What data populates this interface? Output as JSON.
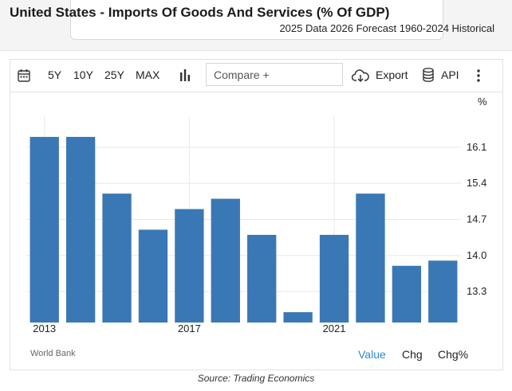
{
  "page": {
    "title": "United States - Imports Of Goods And Services (% Of GDP)",
    "subtitle": "2025 Data 2026 Forecast 1960-2024 Historical",
    "caption": "Source: Trading Economics"
  },
  "toolbar": {
    "calendar_icon": "calendar-icon",
    "ranges": [
      "5Y",
      "10Y",
      "25Y",
      "MAX"
    ],
    "chart_type_icon": "bar-chart-icon",
    "compare_placeholder": "Compare +",
    "export_label": "Export",
    "api_label": "API",
    "more_icon": "vertical-ellipsis-icon"
  },
  "footer": {
    "source_label": "World Bank",
    "modes": [
      {
        "label": "Value",
        "active": true
      },
      {
        "label": "Chg",
        "active": false
      },
      {
        "label": "Chg%",
        "active": false
      }
    ]
  },
  "colors": {
    "bar": "#3a78b5",
    "active_mode": "#2a8ad3",
    "grid": "#e8e8e8"
  },
  "chart_data": {
    "type": "bar",
    "title": "",
    "xlabel": "",
    "ylabel": "%",
    "categories": [
      "2013",
      "2014",
      "2015",
      "2016",
      "2017",
      "2018",
      "2019",
      "2020",
      "2021",
      "2022",
      "2023",
      "2024"
    ],
    "values": [
      16.3,
      16.3,
      15.2,
      14.5,
      14.9,
      15.1,
      14.4,
      12.9,
      14.4,
      15.2,
      13.8,
      13.9
    ],
    "ylim": [
      12.7,
      16.7
    ],
    "yticks": [
      13.3,
      14.0,
      14.7,
      15.4,
      16.1
    ],
    "ytick_labels": [
      "13.3",
      "14.0",
      "14.7",
      "15.4",
      "16.1"
    ],
    "xtick_labels": [
      {
        "category": "2013",
        "label": "2013"
      },
      {
        "category": "2017",
        "label": "2017"
      },
      {
        "category": "2021",
        "label": "2021"
      }
    ],
    "grid": true,
    "legend": "none"
  }
}
